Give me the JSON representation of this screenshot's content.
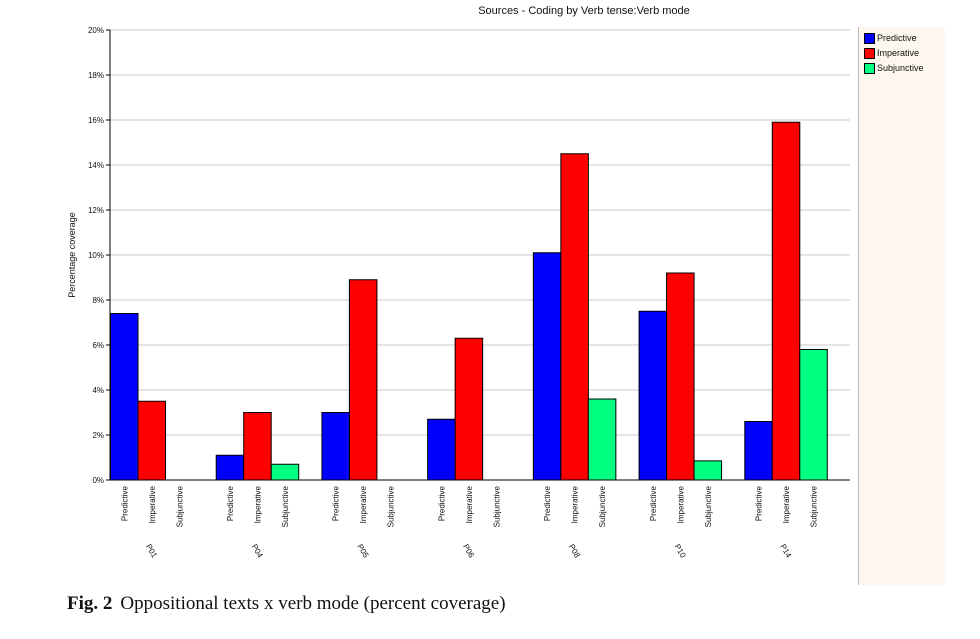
{
  "chart_data": {
    "type": "bar",
    "title": "Sources - Coding by Verb tense:Verb mode",
    "ylabel": "Percentage coverage",
    "xlabel": "",
    "ylim": [
      0,
      20
    ],
    "yticks": [
      "0%",
      "2%",
      "4%",
      "6%",
      "8%",
      "10%",
      "12%",
      "14%",
      "16%",
      "18%",
      "20%"
    ],
    "grid": true,
    "legend_position": "right",
    "categories": [
      "P01",
      "P04",
      "P05",
      "P06",
      "P08",
      "P10",
      "P14"
    ],
    "sub_labels": [
      "Predictive",
      "Imperative",
      "Subjunctive"
    ],
    "series": [
      {
        "name": "Predictive",
        "color": "#0000ff",
        "values": [
          7.4,
          1.1,
          3.0,
          2.7,
          10.1,
          7.5,
          2.6
        ]
      },
      {
        "name": "Imperative",
        "color": "#ff0000",
        "values": [
          3.5,
          3.0,
          8.9,
          6.3,
          14.5,
          9.2,
          15.9
        ]
      },
      {
        "name": "Subjunctive",
        "color": "#00ff80",
        "values": [
          0,
          0.7,
          0,
          0,
          3.6,
          0.85,
          5.8
        ]
      }
    ]
  },
  "caption": {
    "label": "Fig. 2",
    "text": "Oppositional texts x verb mode (percent coverage)"
  }
}
